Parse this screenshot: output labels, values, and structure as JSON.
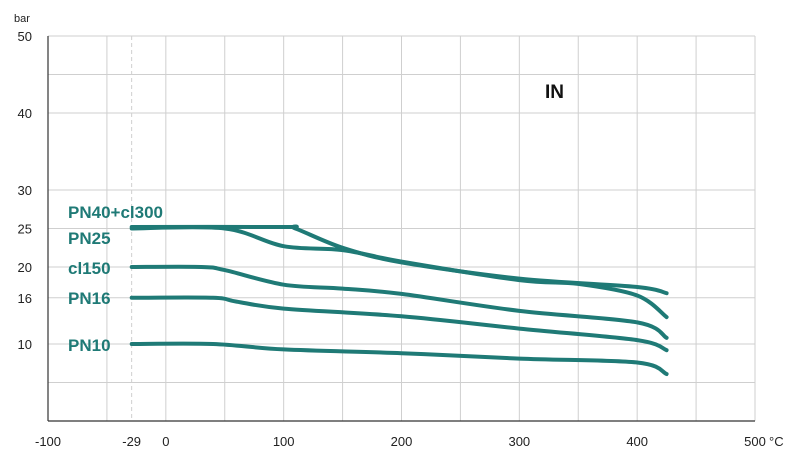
{
  "chart_data": {
    "type": "line",
    "title": "",
    "xlabel": "",
    "ylabel": "",
    "x_unit": "°C",
    "y_unit": "bar",
    "annotation": "IN",
    "xlim": [
      -100,
      500
    ],
    "ylim": [
      0,
      50
    ],
    "x_ticks": [
      -100,
      -29,
      0,
      100,
      200,
      300,
      400,
      500
    ],
    "x_tick_labels": [
      "-100",
      "-29",
      "0",
      "100",
      "200",
      "300",
      "400",
      "500"
    ],
    "y_ticks": [
      10,
      16,
      20,
      25,
      30,
      40,
      50
    ],
    "y_tick_labels": [
      "10",
      "16",
      "20",
      "25",
      "30",
      "40",
      "50"
    ],
    "grid": true,
    "line_color": "#1f7a76",
    "series": [
      {
        "name": "PN40+cl300",
        "x": [
          -29,
          100,
          110,
          150,
          200,
          300,
          400,
          425
        ],
        "y": [
          25.2,
          25.2,
          25,
          22.5,
          20.6,
          18.5,
          17.4,
          16.6
        ]
      },
      {
        "name": "PN25",
        "x": [
          -29,
          50,
          100,
          150,
          200,
          300,
          350,
          400,
          425
        ],
        "y": [
          25,
          25,
          22.7,
          22.2,
          20.7,
          18.3,
          17.8,
          16.3,
          13.5
        ]
      },
      {
        "name": "cl150",
        "x": [
          -29,
          30,
          50,
          100,
          150,
          200,
          300,
          400,
          425
        ],
        "y": [
          20,
          20,
          19.6,
          17.7,
          17.2,
          16.5,
          14.3,
          12.8,
          10.8
        ]
      },
      {
        "name": "PN16",
        "x": [
          -29,
          40,
          60,
          100,
          200,
          300,
          400,
          425
        ],
        "y": [
          16,
          16,
          15.5,
          14.6,
          13.6,
          12,
          10.5,
          9.2
        ]
      },
      {
        "name": "PN10",
        "x": [
          -29,
          40,
          100,
          200,
          300,
          400,
          425
        ],
        "y": [
          10,
          10,
          9.3,
          8.8,
          8.1,
          7.6,
          6.1
        ]
      }
    ]
  }
}
